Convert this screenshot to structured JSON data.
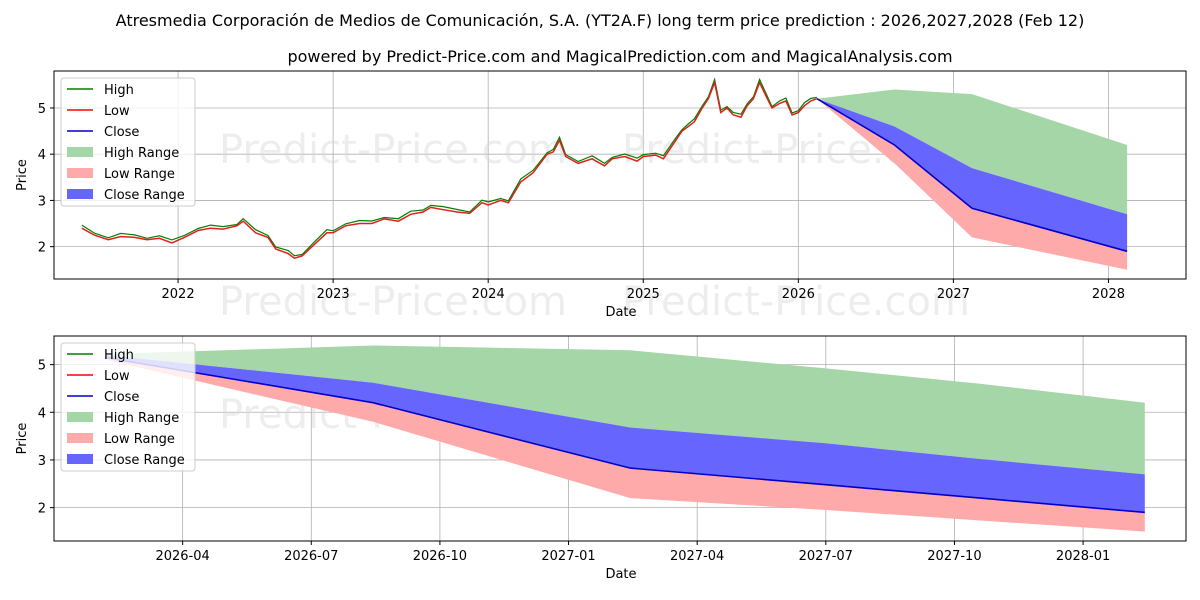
{
  "title": "Atresmedia Corporación de Medios de Comunicación, S.A. (YT2A.F) long term price prediction : 2026,2027,2028 (Feb 12)",
  "subtitle": "powered by Predict-Price.com and MagicalPrediction.com and MagicalAnalysis.com",
  "watermark": "Predict-Price.com",
  "colors": {
    "high": "#008000",
    "low": "#ff0000",
    "close": "#0000cc",
    "high_range": "#a5d6a7",
    "low_range": "#ffaaaa",
    "close_range": "#6666ff",
    "history": "#e0201a"
  },
  "legend": [
    "High",
    "Low",
    "Close",
    "High Range",
    "Low Range",
    "Close Range"
  ],
  "chart_data": [
    {
      "type": "line",
      "panel": "history",
      "xlabel": "Date",
      "ylabel": "Price",
      "xlim": [
        2021.2,
        2028.5
      ],
      "ylim": [
        1.3,
        5.8
      ],
      "x_ticks": [
        2022,
        2023,
        2024,
        2025,
        2026,
        2027,
        2028
      ],
      "x_tick_labels": [
        "2022",
        "2023",
        "2024",
        "2025",
        "2026",
        "2027",
        "2028"
      ],
      "y_ticks": [
        2,
        3,
        4,
        5
      ],
      "y_tick_labels": [
        "2",
        "3",
        "4",
        "5"
      ],
      "history": {
        "x": [
          2021.38,
          2021.46,
          2021.55,
          2021.63,
          2021.72,
          2021.8,
          2021.88,
          2021.96,
          2022.04,
          2022.13,
          2022.21,
          2022.29,
          2022.38,
          2022.42,
          2022.5,
          2022.58,
          2022.63,
          2022.71,
          2022.75,
          2022.8,
          2022.88,
          2022.96,
          2023.0,
          2023.08,
          2023.17,
          2023.25,
          2023.33,
          2023.42,
          2023.5,
          2023.58,
          2023.63,
          2023.71,
          2023.8,
          2023.88,
          2023.96,
          2024.0,
          2024.08,
          2024.13,
          2024.21,
          2024.29,
          2024.38,
          2024.42,
          2024.46,
          2024.5,
          2024.58,
          2024.67,
          2024.75,
          2024.8,
          2024.88,
          2024.96,
          2025.0,
          2025.08,
          2025.13,
          2025.21,
          2025.25,
          2025.29,
          2025.33,
          2025.38,
          2025.42,
          2025.46,
          2025.5,
          2025.54,
          2025.58,
          2025.63,
          2025.67,
          2025.71,
          2025.75,
          2025.8,
          2025.83,
          2025.88,
          2025.92,
          2025.96,
          2026.0,
          2026.04,
          2026.08,
          2026.12
        ],
        "y": [
          2.4,
          2.25,
          2.15,
          2.22,
          2.2,
          2.15,
          2.18,
          2.08,
          2.2,
          2.35,
          2.4,
          2.38,
          2.45,
          2.55,
          2.3,
          2.2,
          1.95,
          1.85,
          1.75,
          1.8,
          2.05,
          2.3,
          2.3,
          2.45,
          2.5,
          2.5,
          2.6,
          2.55,
          2.7,
          2.75,
          2.85,
          2.8,
          2.75,
          2.72,
          2.95,
          2.9,
          3.0,
          2.95,
          3.4,
          3.6,
          4.0,
          4.05,
          4.3,
          3.95,
          3.8,
          3.9,
          3.75,
          3.9,
          3.95,
          3.85,
          3.95,
          3.98,
          3.9,
          4.3,
          4.5,
          4.6,
          4.7,
          5.0,
          5.2,
          5.55,
          4.9,
          5.0,
          4.85,
          4.8,
          5.05,
          5.2,
          5.55,
          5.2,
          5.0,
          5.1,
          5.15,
          4.85,
          4.9,
          5.05,
          5.15,
          5.2
        ]
      },
      "forecast_x": [
        2026.12,
        2026.62,
        2027.12,
        2028.12
      ],
      "series": [
        {
          "name": "High Range upper",
          "values": [
            5.2,
            5.4,
            5.3,
            4.2
          ]
        },
        {
          "name": "Close Range upper",
          "values": [
            5.2,
            4.6,
            3.7,
            2.7
          ]
        },
        {
          "name": "Close",
          "values": [
            5.2,
            4.2,
            2.83,
            1.9
          ]
        },
        {
          "name": "Low Range lower",
          "values": [
            5.2,
            3.8,
            2.2,
            1.5
          ]
        }
      ]
    },
    {
      "type": "line",
      "panel": "forecast",
      "xlabel": "Date",
      "ylabel": "Price",
      "xlim": [
        2026.0,
        2028.2
      ],
      "ylim": [
        1.3,
        5.6
      ],
      "x_ticks": [
        2026.25,
        2026.5,
        2026.75,
        2027.0,
        2027.25,
        2027.5,
        2027.75,
        2028.0
      ],
      "x_tick_labels": [
        "2026-04",
        "2026-07",
        "2026-10",
        "2027-01",
        "2027-04",
        "2027-07",
        "2027-10",
        "2028-01"
      ],
      "y_ticks": [
        2,
        3,
        4,
        5
      ],
      "y_tick_labels": [
        "2",
        "3",
        "4",
        "5"
      ],
      "x": [
        2026.1,
        2026.62,
        2027.12,
        2027.5,
        2027.8,
        2028.12
      ],
      "series": [
        {
          "name": "High Range upper",
          "values": [
            5.22,
            5.4,
            5.3,
            4.92,
            4.6,
            4.2
          ]
        },
        {
          "name": "Close Range upper",
          "values": [
            5.2,
            4.62,
            3.68,
            3.35,
            3.02,
            2.7
          ]
        },
        {
          "name": "Close",
          "values": [
            5.15,
            4.2,
            2.83,
            2.48,
            2.2,
            1.9
          ]
        },
        {
          "name": "Low Range lower",
          "values": [
            5.1,
            3.8,
            2.2,
            1.95,
            1.73,
            1.5
          ]
        }
      ]
    }
  ]
}
